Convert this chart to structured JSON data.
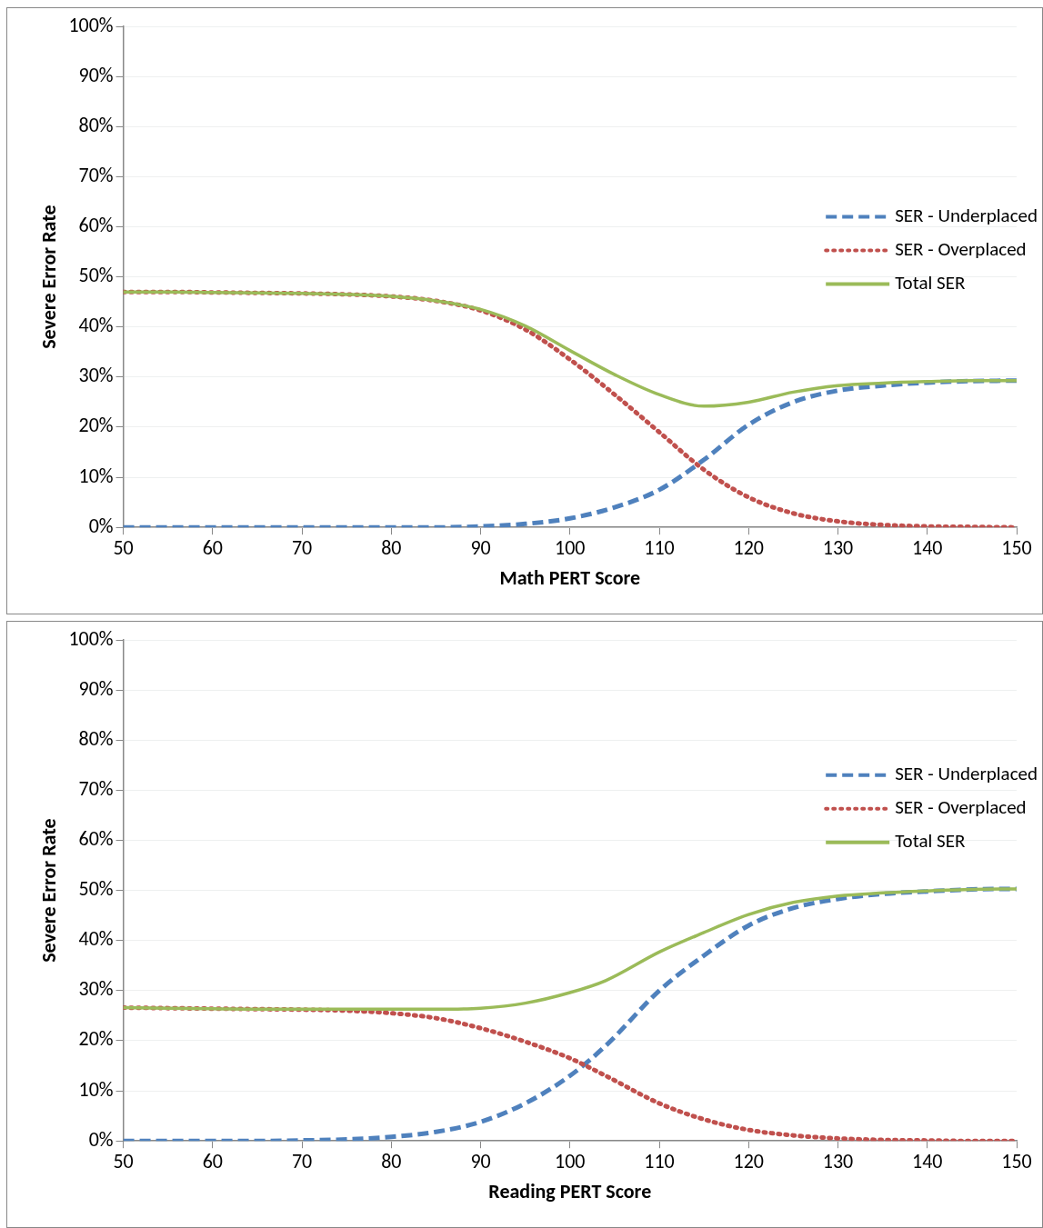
{
  "chart_data": [
    {
      "type": "line",
      "xlabel": "Math PERT Score",
      "ylabel": "Severe Error Rate",
      "x": [
        50,
        55,
        60,
        65,
        70,
        75,
        80,
        85,
        90,
        95,
        100,
        105,
        110,
        115,
        120,
        125,
        130,
        135,
        140,
        145,
        150
      ],
      "series": [
        {
          "name": "SER - Underplaced",
          "color": "#4f81bd",
          "line_style": "dashed",
          "values": [
            0,
            0,
            0,
            0,
            0,
            0,
            0,
            0,
            0.2,
            0.7,
            1.8,
            4,
            7.5,
            13.5,
            20.5,
            25,
            27.3,
            28.3,
            28.9,
            29.2,
            29.3
          ]
        },
        {
          "name": "SER - Overplaced",
          "color": "#c0504d",
          "line_style": "dotted",
          "values": [
            47,
            47,
            46.9,
            46.8,
            46.7,
            46.5,
            46.1,
            45.2,
            43.3,
            39.5,
            33.5,
            26.5,
            19,
            11.5,
            6,
            2.8,
            1.2,
            0.5,
            0.2,
            0.1,
            0
          ]
        },
        {
          "name": "Total SER",
          "color": "#9bbb59",
          "line_style": "solid",
          "values": [
            47,
            47,
            46.9,
            46.8,
            46.7,
            46.5,
            46.1,
            45.2,
            43.5,
            40.2,
            35.3,
            30.5,
            26.5,
            24.2,
            25,
            27,
            28.3,
            28.8,
            29.1,
            29.3,
            29.3
          ]
        }
      ],
      "xlim": [
        50,
        150
      ],
      "xticks": [
        50,
        60,
        70,
        80,
        90,
        100,
        110,
        120,
        130,
        140,
        150
      ],
      "ylim": [
        0,
        100
      ],
      "yticks": [
        {
          "value": 0,
          "label": "0%"
        },
        {
          "value": 10,
          "label": "10%"
        },
        {
          "value": 20,
          "label": "20%"
        },
        {
          "value": 30,
          "label": "30%"
        },
        {
          "value": 40,
          "label": "40%"
        },
        {
          "value": 50,
          "label": "50%"
        },
        {
          "value": 60,
          "label": "60%"
        },
        {
          "value": 70,
          "label": "70%"
        },
        {
          "value": 80,
          "label": "80%"
        },
        {
          "value": 90,
          "label": "90%"
        },
        {
          "value": 100,
          "label": "100%"
        }
      ],
      "grid": "y",
      "legend": "right",
      "marker": "none"
    },
    {
      "type": "line",
      "xlabel": "Reading PERT Score",
      "ylabel": "Severe Error Rate",
      "x": [
        50,
        55,
        60,
        65,
        70,
        75,
        80,
        85,
        90,
        95,
        100,
        104,
        110,
        115,
        120,
        125,
        130,
        135,
        140,
        145,
        150
      ],
      "series": [
        {
          "name": "SER - Underplaced",
          "color": "#4f81bd",
          "line_style": "dashed",
          "values": [
            0,
            0,
            0,
            0,
            0.1,
            0.3,
            0.8,
            1.8,
            3.8,
            7.5,
            13,
            19,
            30,
            37,
            43,
            46.5,
            48.3,
            49.3,
            49.8,
            50.2,
            50.3
          ]
        },
        {
          "name": "SER - Overplaced",
          "color": "#c0504d",
          "line_style": "dotted",
          "values": [
            26.6,
            26.5,
            26.4,
            26.3,
            26.2,
            26,
            25.5,
            24.5,
            22.5,
            19.8,
            16.5,
            13,
            7.5,
            4.3,
            2.2,
            1.1,
            0.5,
            0.2,
            0.1,
            0,
            0
          ]
        },
        {
          "name": "Total SER",
          "color": "#9bbb59",
          "line_style": "solid",
          "values": [
            26.6,
            26.5,
            26.4,
            26.3,
            26.3,
            26.3,
            26.3,
            26.3,
            26.5,
            27.5,
            29.6,
            32,
            37.7,
            41.6,
            45.2,
            47.6,
            48.9,
            49.5,
            49.9,
            50.2,
            50.3
          ]
        }
      ],
      "xlim": [
        50,
        150
      ],
      "xticks": [
        50,
        60,
        70,
        80,
        90,
        100,
        110,
        120,
        130,
        140,
        150
      ],
      "ylim": [
        0,
        100
      ],
      "yticks": [
        {
          "value": 0,
          "label": "0%"
        },
        {
          "value": 10,
          "label": "10%"
        },
        {
          "value": 20,
          "label": "20%"
        },
        {
          "value": 30,
          "label": "30%"
        },
        {
          "value": 40,
          "label": "40%"
        },
        {
          "value": 50,
          "label": "50%"
        },
        {
          "value": 60,
          "label": "60%"
        },
        {
          "value": 70,
          "label": "70%"
        },
        {
          "value": 80,
          "label": "80%"
        },
        {
          "value": 90,
          "label": "90%"
        },
        {
          "value": 100,
          "label": "100%"
        }
      ],
      "grid": "y",
      "legend": "right",
      "marker": "none"
    }
  ]
}
